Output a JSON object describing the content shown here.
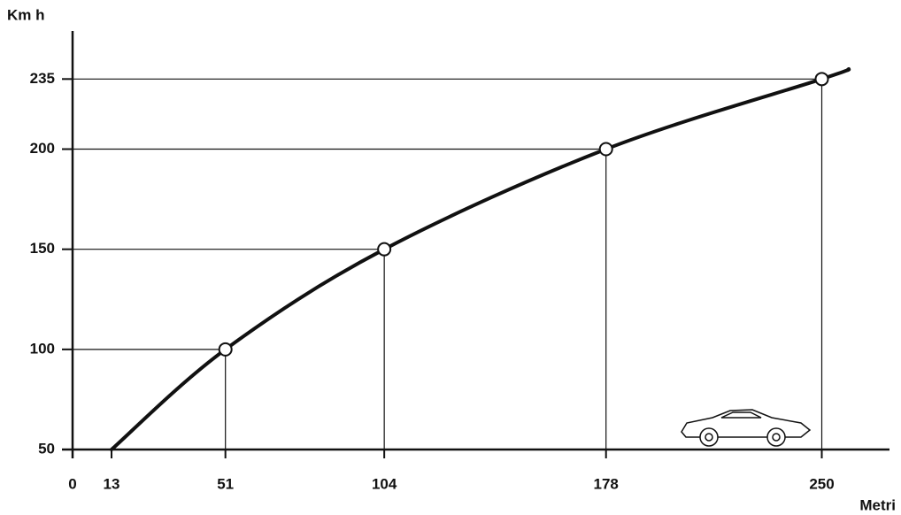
{
  "chart_data": {
    "type": "line",
    "y_label": "Km h",
    "x_label": "Metri",
    "series": [
      {
        "color": "#111111",
        "x": [
          13,
          51,
          104,
          178,
          250,
          259
        ],
        "values": [
          50,
          100,
          150,
          200,
          235,
          240
        ]
      }
    ],
    "points": {
      "x": [
        51,
        104,
        178,
        250
      ],
      "values": [
        100,
        150,
        200,
        235
      ]
    },
    "xlim": [
      0,
      272
    ],
    "xticks": [
      0,
      13,
      51,
      104,
      178,
      250
    ],
    "ylim": [
      50,
      259
    ],
    "yticks": [
      50,
      100,
      150,
      200,
      235
    ]
  }
}
